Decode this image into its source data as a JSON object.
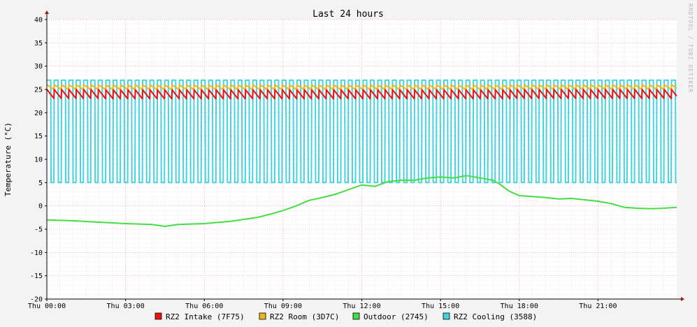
{
  "chart_data": {
    "type": "line",
    "title": "Last 24 hours",
    "ylabel": "Temperature (°C)",
    "side_label": "RRDTOOL / TOBI OETIKER",
    "ylim": [
      -20,
      40
    ],
    "yticks": [
      40,
      35,
      30,
      25,
      20,
      15,
      10,
      5,
      0,
      -5,
      -10,
      -15,
      -20
    ],
    "xlim_hours": [
      0,
      24
    ],
    "x_tick_labels": [
      {
        "hour": 0,
        "label": "Thu 00:00"
      },
      {
        "hour": 3,
        "label": "Thu 03:00"
      },
      {
        "hour": 6,
        "label": "Thu 06:00"
      },
      {
        "hour": 9,
        "label": "Thu 09:00"
      },
      {
        "hour": 12,
        "label": "Thu 12:00"
      },
      {
        "hour": 15,
        "label": "Thu 15:00"
      },
      {
        "hour": 18,
        "label": "Thu 18:00"
      },
      {
        "hour": 21,
        "label": "Thu 21:00"
      }
    ],
    "grid": true,
    "legend_position": "bottom",
    "series": [
      {
        "name": "RZ2 Intake (7F75)",
        "color": "#ee1111",
        "style": "sawtooth",
        "low": 23.0,
        "high": 25.0,
        "period_hours": 0.28
      },
      {
        "name": "RZ2 Room (3D7C)",
        "color": "#e8b820",
        "style": "sawtooth",
        "low": 25.0,
        "high": 26.0,
        "period_hours": 0.28
      },
      {
        "name": "Outdoor (2745)",
        "color": "#44dd44",
        "style": "line",
        "x": [
          0,
          1,
          2,
          3,
          4,
          4.5,
          5,
          6,
          7,
          8,
          8.5,
          9,
          9.5,
          10,
          10.5,
          11,
          11.5,
          12,
          12.5,
          13,
          13.5,
          14,
          14.5,
          15,
          15.5,
          16,
          16.5,
          17,
          17.3,
          17.6,
          18,
          18.5,
          19,
          19.5,
          20,
          20.5,
          21,
          21.5,
          22,
          22.5,
          23,
          23.5,
          24
        ],
        "y": [
          -3,
          -3.2,
          -3.5,
          -3.8,
          -4,
          -4.4,
          -4,
          -3.8,
          -3.3,
          -2.5,
          -1.8,
          -1,
          0,
          1.2,
          1.8,
          2.5,
          3.5,
          4.5,
          4.2,
          5.2,
          5.5,
          5.5,
          6,
          6.2,
          6,
          6.5,
          6,
          5.5,
          4.5,
          3.2,
          2.2,
          2,
          1.8,
          1.5,
          1.6,
          1.3,
          1,
          0.5,
          -0.3,
          -0.5,
          -0.6,
          -0.5,
          -0.3
        ]
      },
      {
        "name": "RZ2 Cooling (3588)",
        "color": "#44d4e0",
        "style": "square",
        "low": 5.0,
        "high": 27.0,
        "period_hours": 0.28,
        "duty": 0.55
      }
    ]
  }
}
